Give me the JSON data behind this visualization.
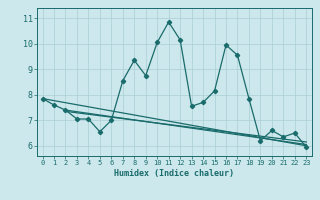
{
  "xlabel": "Humidex (Indice chaleur)",
  "bg_color": "#cce8ec",
  "line_color": "#1a6b6b",
  "grid_color": "#aacdd4",
  "xlim": [
    -0.5,
    23.5
  ],
  "ylim": [
    5.6,
    11.4
  ],
  "yticks": [
    6,
    7,
    8,
    9,
    10,
    11
  ],
  "xticks": [
    0,
    1,
    2,
    3,
    4,
    5,
    6,
    7,
    8,
    9,
    10,
    11,
    12,
    13,
    14,
    15,
    16,
    17,
    18,
    19,
    20,
    21,
    22,
    23
  ],
  "line1_x": [
    0,
    1,
    2,
    3,
    4,
    5,
    6,
    7,
    8,
    9,
    10,
    11,
    12,
    13,
    14,
    15,
    16,
    17,
    18,
    19,
    20,
    21,
    22,
    23
  ],
  "line1_y": [
    7.85,
    7.6,
    7.4,
    7.05,
    7.05,
    6.55,
    7.0,
    8.55,
    9.35,
    8.75,
    10.05,
    10.85,
    10.15,
    7.55,
    7.7,
    8.15,
    9.95,
    9.55,
    7.85,
    6.2,
    6.6,
    6.35,
    6.5,
    5.95
  ],
  "line2_x": [
    0,
    23
  ],
  "line2_y": [
    7.85,
    6.0
  ],
  "line3_x": [
    2,
    23
  ],
  "line3_y": [
    7.4,
    6.05
  ],
  "line4_x": [
    2,
    23
  ],
  "line4_y": [
    7.35,
    6.15
  ]
}
